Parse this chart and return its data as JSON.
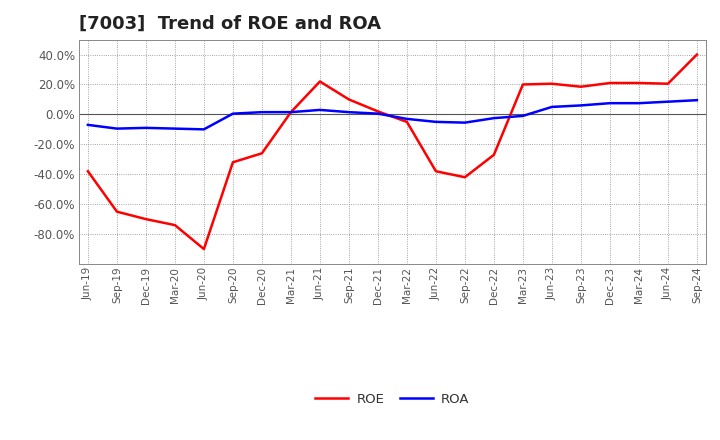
{
  "title": "[7003]  Trend of ROE and ROA",
  "x_labels": [
    "Jun-19",
    "Sep-19",
    "Dec-19",
    "Mar-20",
    "Jun-20",
    "Sep-20",
    "Dec-20",
    "Mar-21",
    "Jun-21",
    "Sep-21",
    "Dec-21",
    "Mar-22",
    "Jun-22",
    "Sep-22",
    "Dec-22",
    "Mar-23",
    "Jun-23",
    "Sep-23",
    "Dec-23",
    "Mar-24",
    "Jun-24",
    "Sep-24"
  ],
  "roe": [
    -38.0,
    -65.0,
    -70.0,
    -74.0,
    -90.0,
    -32.0,
    -26.0,
    1.5,
    22.0,
    10.0,
    2.0,
    -5.0,
    -38.0,
    -42.0,
    -27.0,
    20.0,
    20.5,
    18.5,
    21.0,
    21.0,
    20.5,
    40.0
  ],
  "roa": [
    -7.0,
    -9.5,
    -9.0,
    -9.5,
    -10.0,
    0.5,
    1.5,
    1.5,
    3.0,
    1.5,
    0.5,
    -3.0,
    -5.0,
    -5.5,
    -2.5,
    -1.0,
    5.0,
    6.0,
    7.5,
    7.5,
    8.5,
    9.5
  ],
  "roe_color": "#ff0000",
  "roa_color": "#0000ff",
  "ylim": [
    -100,
    50
  ],
  "yticks": [
    -80.0,
    -60.0,
    -40.0,
    -20.0,
    0.0,
    20.0,
    40.0
  ],
  "background_color": "#ffffff",
  "plot_bg_color": "#e8e8e8",
  "grid_color": "#888888",
  "title_fontsize": 13,
  "axis_label_color": "#555555",
  "legend_labels": [
    "ROE",
    "ROA"
  ],
  "line_width": 1.8
}
